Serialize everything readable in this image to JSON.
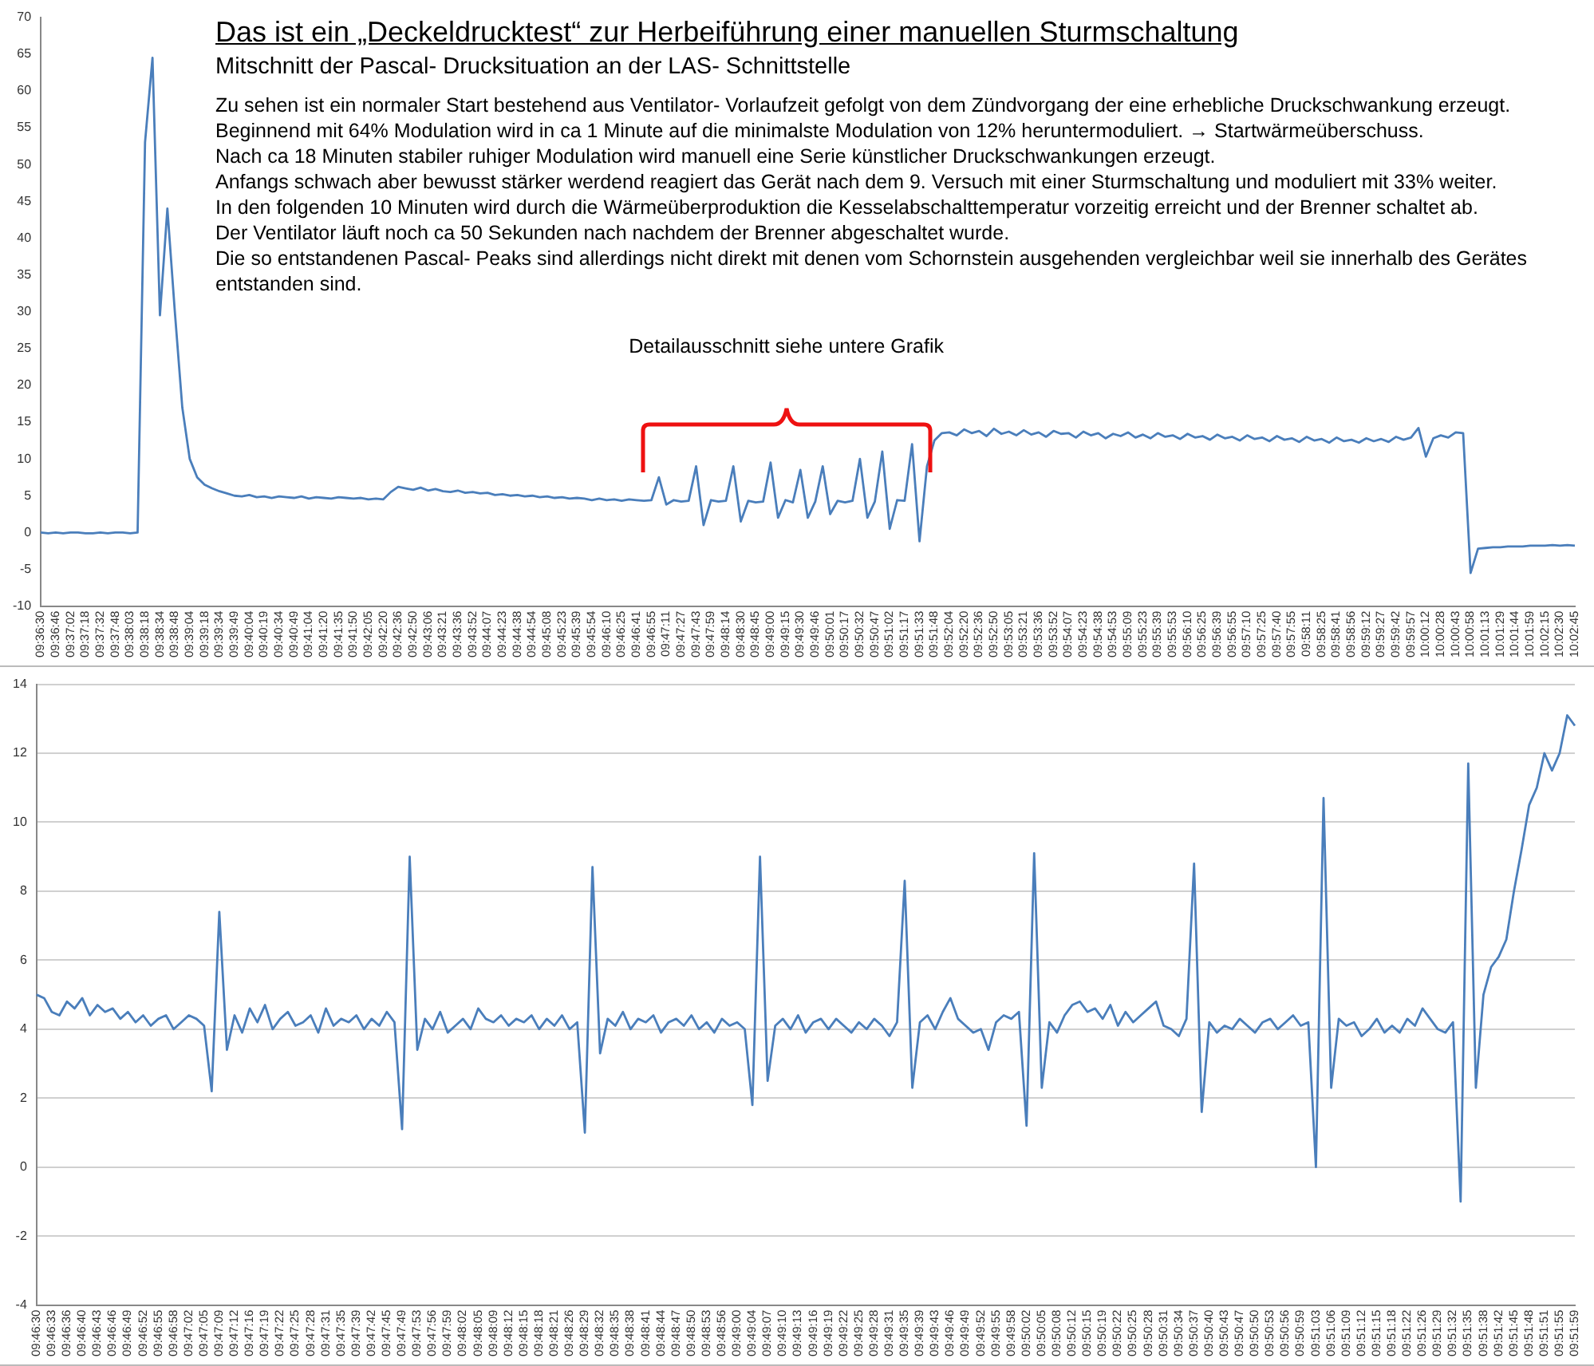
{
  "chart_data": [
    {
      "type": "line",
      "title": "Das ist ein „Deckeldrucktest“ zur Herbeiführung einer manuellen Sturmschaltung",
      "subtitle": "Mitschnitt der Pascal- Drucksituation an der LAS- Schnittstelle",
      "annotations": [
        "Zu sehen ist ein normaler Start bestehend aus Ventilator- Vorlaufzeit gefolgt von dem Zündvorgang der eine erhebliche Druckschwankung erzeugt.",
        "Beginnend mit 64% Modulation wird in ca 1 Minute auf die minimalste Modulation von 12% heruntermoduliert.  → Startwärmeüberschuss.",
        "Nach ca 18 Minuten stabiler ruhiger Modulation wird manuell eine Serie künstlicher Druckschwankungen erzeugt.",
        "Anfangs schwach aber bewusst stärker werdend reagiert das Gerät nach dem 9. Versuch mit einer Sturmschaltung und moduliert mit 33% weiter.",
        "In den folgenden 10 Minuten wird durch die Wärmeüberproduktion die Kesselabschalttemperatur vorzeitig erreicht und der Brenner schaltet ab.",
        "Der Ventilator läuft noch ca 50 Sekunden nach nachdem der Brenner abgeschaltet wurde.",
        "Die so entstandenen Pascal- Peaks sind allerdings nicht direkt mit denen vom Schornstein ausgehenden vergleichbar weil sie innerhalb des Gerätes entstanden sind.",
        "Detailausschnitt siehe untere Grafik"
      ],
      "categories": [
        "09:36:30",
        null,
        "09:36:46",
        null,
        "09:37:02",
        null,
        "09:37:18",
        null,
        "09:37:32",
        null,
        "09:37:48",
        null,
        "09:38:03",
        null,
        "09:38:18",
        null,
        "09:38:34",
        null,
        "09:38:48",
        null,
        "09:39:04",
        null,
        "09:39:18",
        null,
        "09:39:34",
        null,
        "09:39:49",
        null,
        "09:40:04",
        null,
        "09:40:19",
        null,
        "09:40:34",
        null,
        "09:40:49",
        null,
        "09:41:04",
        null,
        "09:41:20",
        null,
        "09:41:35",
        null,
        "09:41:50",
        null,
        "09:42:05",
        null,
        "09:42:20",
        null,
        "09:42:36",
        null,
        "09:42:50",
        null,
        "09:43:06",
        null,
        "09:43:21",
        null,
        "09:43:36",
        null,
        "09:43:52",
        null,
        "09:44:07",
        null,
        "09:44:23",
        null,
        "09:44:38",
        null,
        "09:44:54",
        null,
        "09:45:08",
        null,
        "09:45:23",
        null,
        "09:45:39",
        null,
        "09:45:54",
        null,
        "09:46:10",
        null,
        "09:46:25",
        null,
        "09:46:41",
        null,
        "09:46:55",
        null,
        "09:47:11",
        null,
        "09:47:27",
        null,
        "09:47:43",
        null,
        "09:47:59",
        null,
        "09:48:14",
        null,
        "09:48:30",
        null,
        "09:48:45",
        null,
        "09:49:00",
        null,
        "09:49:15",
        null,
        "09:49:30",
        null,
        "09:49:46",
        null,
        "09:50:01",
        null,
        "09:50:17",
        null,
        "09:50:32",
        null,
        "09:50:47",
        null,
        "09:51:02",
        null,
        "09:51:17",
        null,
        "09:51:33",
        null,
        "09:51:48",
        null,
        "09:52:04",
        null,
        "09:52:20",
        null,
        "09:52:36",
        null,
        "09:52:50",
        null,
        "09:53:05",
        null,
        "09:53:21",
        null,
        "09:53:36",
        null,
        "09:53:52",
        null,
        "09:54:07",
        null,
        "09:54:23",
        null,
        "09:54:38",
        null,
        "09:54:53",
        null,
        "09:55:09",
        null,
        "09:55:23",
        null,
        "09:55:39",
        null,
        "09:55:53",
        null,
        "09:56:10",
        null,
        "09:56:25",
        null,
        "09:56:39",
        null,
        "09:56:55",
        null,
        "09:57:10",
        null,
        "09:57:25",
        null,
        "09:57:40",
        null,
        "09:57:55",
        null,
        "09:58:11",
        null,
        "09:58:25",
        null,
        "09:58:41",
        null,
        "09:58:56",
        null,
        "09:59:12",
        null,
        "09:59:27",
        null,
        "09:59:42",
        null,
        "09:59:57",
        null,
        "10:00:12",
        null,
        "10:00:28",
        null,
        "10:00:43",
        null,
        "10:00:58",
        null,
        "10:01:13",
        null,
        "10:01:29",
        null,
        "10:01:44",
        null,
        "10:01:59",
        null,
        "10:02:15",
        null,
        "10:02:30",
        null,
        "10:02:45"
      ],
      "series": [
        {
          "color": "#4a7ebb",
          "values": [
            0,
            -0.1,
            0,
            -0.1,
            0,
            0,
            -0.1,
            -0.1,
            0,
            -0.1,
            0,
            0,
            -0.1,
            0,
            53,
            64.5,
            29.5,
            44,
            30,
            17,
            10,
            7.5,
            6.5,
            6.0,
            5.6,
            5.3,
            5.0,
            4.9,
            5.1,
            4.8,
            4.9,
            4.7,
            4.9,
            4.8,
            4.7,
            4.9,
            4.6,
            4.8,
            4.7,
            4.6,
            4.8,
            4.7,
            4.6,
            4.7,
            4.5,
            4.6,
            4.5,
            5.5,
            6.2,
            6.0,
            5.8,
            6.1,
            5.7,
            5.9,
            5.6,
            5.5,
            5.7,
            5.4,
            5.5,
            5.3,
            5.4,
            5.1,
            5.2,
            5.0,
            5.1,
            4.9,
            5.0,
            4.8,
            4.9,
            4.7,
            4.8,
            4.6,
            4.7,
            4.6,
            4.4,
            4.6,
            4.4,
            4.5,
            4.3,
            4.5,
            4.4,
            4.3,
            4.4,
            7.5,
            3.8,
            4.4,
            4.2,
            4.3,
            9.0,
            1.0,
            4.4,
            4.2,
            4.3,
            9.0,
            1.5,
            4.3,
            4.1,
            4.2,
            9.5,
            2.0,
            4.4,
            4.1,
            8.5,
            2.0,
            4.2,
            9.0,
            2.5,
            4.3,
            4.1,
            4.3,
            10.0,
            2.0,
            4.2,
            11.0,
            0.5,
            4.4,
            4.3,
            12.0,
            -1.2,
            9.0,
            12.5,
            13.5,
            13.6,
            13.2,
            14.0,
            13.5,
            13.8,
            13.1,
            14.1,
            13.4,
            13.7,
            13.2,
            13.9,
            13.3,
            13.6,
            13.0,
            13.8,
            13.4,
            13.5,
            12.9,
            13.7,
            13.2,
            13.5,
            12.8,
            13.4,
            13.1,
            13.6,
            12.9,
            13.3,
            12.8,
            13.5,
            13.0,
            13.2,
            12.7,
            13.4,
            12.9,
            13.1,
            12.6,
            13.3,
            12.8,
            13.0,
            12.5,
            13.2,
            12.7,
            12.9,
            12.4,
            13.1,
            12.6,
            12.8,
            12.3,
            13.0,
            12.5,
            12.7,
            12.2,
            12.9,
            12.4,
            12.6,
            12.2,
            12.8,
            12.4,
            12.7,
            12.3,
            13.0,
            12.6,
            12.9,
            14.2,
            10.3,
            12.8,
            13.2,
            12.9,
            13.6,
            13.5,
            -5.5,
            -2.2,
            -2.1,
            -2.0,
            -2.0,
            -1.9,
            -1.9,
            -1.9,
            -1.8,
            -1.8,
            -1.8,
            -1.7,
            -1.8,
            -1.7,
            -1.8
          ]
        }
      ],
      "ylim": [
        -10,
        70
      ],
      "yticks": [
        -10,
        -5,
        0,
        5,
        10,
        15,
        20,
        25,
        30,
        35,
        40,
        45,
        50,
        55,
        60,
        65,
        70
      ],
      "grid": false,
      "marker": "none"
    },
    {
      "type": "line",
      "categories": [
        "09:46:30",
        null,
        "09:46:33",
        null,
        "09:46:36",
        null,
        "09:46:40",
        null,
        "09:46:43",
        null,
        "09:46:46",
        null,
        "09:46:49",
        null,
        "09:46:52",
        null,
        "09:46:55",
        null,
        "09:46:58",
        null,
        "09:47:02",
        null,
        "09:47:05",
        null,
        "09:47:09",
        null,
        "09:47:12",
        null,
        "09:47:16",
        null,
        "09:47:19",
        null,
        "09:47:22",
        null,
        "09:47:25",
        null,
        "09:47:28",
        null,
        "09:47:31",
        null,
        "09:47:35",
        null,
        "09:47:39",
        null,
        "09:47:42",
        null,
        "09:47:45",
        null,
        "09:47:49",
        null,
        "09:47:53",
        null,
        "09:47:56",
        null,
        "09:47:59",
        null,
        "09:48:02",
        null,
        "09:48:05",
        null,
        "09:48:09",
        null,
        "09:48:12",
        null,
        "09:48:15",
        null,
        "09:48:18",
        null,
        "09:48:21",
        null,
        "09:48:26",
        null,
        "09:48:29",
        null,
        "09:48:32",
        null,
        "09:48:35",
        null,
        "09:48:38",
        null,
        "09:48:41",
        null,
        "09:48:44",
        null,
        "09:48:47",
        null,
        "09:48:50",
        null,
        "09:48:53",
        null,
        "09:48:56",
        null,
        "09:49:00",
        null,
        "09:49:04",
        null,
        "09:49:07",
        null,
        "09:49:10",
        null,
        "09:49:13",
        null,
        "09:49:16",
        null,
        "09:49:19",
        null,
        "09:49:22",
        null,
        "09:49:25",
        null,
        "09:49:28",
        null,
        "09:49:31",
        null,
        "09:49:35",
        null,
        "09:49:39",
        null,
        "09:49:43",
        null,
        "09:49:46",
        null,
        "09:49:49",
        null,
        "09:49:52",
        null,
        "09:49:55",
        null,
        "09:49:58",
        null,
        "09:50:02",
        null,
        "09:50:05",
        null,
        "09:50:08",
        null,
        "09:50:12",
        null,
        "09:50:15",
        null,
        "09:50:19",
        null,
        "09:50:22",
        null,
        "09:50:25",
        null,
        "09:50:28",
        null,
        "09:50:31",
        null,
        "09:50:34",
        null,
        "09:50:37",
        null,
        "09:50:40",
        null,
        "09:50:43",
        null,
        "09:50:47",
        null,
        "09:50:50",
        null,
        "09:50:53",
        null,
        "09:50:56",
        null,
        "09:50:59",
        null,
        "09:51:03",
        null,
        "09:51:06",
        null,
        "09:51:09",
        null,
        "09:51:12",
        null,
        "09:51:15",
        null,
        "09:51:18",
        null,
        "09:51:22",
        null,
        "09:51:26",
        null,
        "09:51:29",
        null,
        "09:51:32",
        null,
        "09:51:35",
        null,
        "09:51:38",
        null,
        "09:51:42",
        null,
        "09:51:45",
        null,
        "09:51:48",
        null,
        "09:51:51",
        null,
        "09:51:55",
        null,
        "09:51:59"
      ],
      "series": [
        {
          "color": "#4a7ebb",
          "values": [
            5.0,
            4.9,
            4.5,
            4.4,
            4.8,
            4.6,
            4.9,
            4.4,
            4.7,
            4.5,
            4.6,
            4.3,
            4.5,
            4.2,
            4.4,
            4.1,
            4.3,
            4.4,
            4.0,
            4.2,
            4.4,
            4.3,
            4.1,
            2.2,
            7.4,
            3.4,
            4.4,
            3.9,
            4.6,
            4.2,
            4.7,
            4.0,
            4.3,
            4.5,
            4.1,
            4.2,
            4.4,
            3.9,
            4.6,
            4.1,
            4.3,
            4.2,
            4.4,
            4.0,
            4.3,
            4.1,
            4.5,
            4.2,
            1.1,
            9.0,
            3.4,
            4.3,
            4.0,
            4.5,
            3.9,
            4.1,
            4.3,
            4.0,
            4.6,
            4.3,
            4.2,
            4.4,
            4.1,
            4.3,
            4.2,
            4.4,
            4.0,
            4.3,
            4.1,
            4.4,
            4.0,
            4.2,
            1.0,
            8.7,
            3.3,
            4.3,
            4.1,
            4.5,
            4.0,
            4.3,
            4.2,
            4.4,
            3.9,
            4.2,
            4.3,
            4.1,
            4.4,
            4.0,
            4.2,
            3.9,
            4.3,
            4.1,
            4.2,
            4.0,
            1.8,
            9.0,
            2.5,
            4.1,
            4.3,
            4.0,
            4.4,
            3.9,
            4.2,
            4.3,
            4.0,
            4.3,
            4.1,
            3.9,
            4.2,
            4.0,
            4.3,
            4.1,
            3.8,
            4.2,
            8.3,
            2.3,
            4.2,
            4.4,
            4.0,
            4.5,
            4.9,
            4.3,
            4.1,
            3.9,
            4.0,
            3.4,
            4.2,
            4.4,
            4.3,
            4.5,
            1.2,
            9.1,
            2.3,
            4.2,
            3.9,
            4.4,
            4.7,
            4.8,
            4.5,
            4.6,
            4.3,
            4.7,
            4.1,
            4.5,
            4.2,
            4.4,
            4.6,
            4.8,
            4.1,
            4.0,
            3.8,
            4.3,
            8.8,
            1.6,
            4.2,
            3.9,
            4.1,
            4.0,
            4.3,
            4.1,
            3.9,
            4.2,
            4.3,
            4.0,
            4.2,
            4.4,
            4.1,
            4.2,
            0.0,
            10.7,
            2.3,
            4.3,
            4.1,
            4.2,
            3.8,
            4.0,
            4.3,
            3.9,
            4.1,
            3.9,
            4.3,
            4.1,
            4.6,
            4.3,
            4.0,
            3.9,
            4.2,
            -1.0,
            11.7,
            2.3,
            5.0,
            5.8,
            6.1,
            6.6,
            8.0,
            9.2,
            10.5,
            11.0,
            12.0,
            11.5,
            12.0,
            13.1,
            12.8
          ]
        }
      ],
      "ylim": [
        -4,
        14
      ],
      "yticks": [
        -4,
        -2,
        0,
        2,
        4,
        6,
        8,
        10,
        12,
        14
      ],
      "grid": "y",
      "marker": "none"
    }
  ]
}
